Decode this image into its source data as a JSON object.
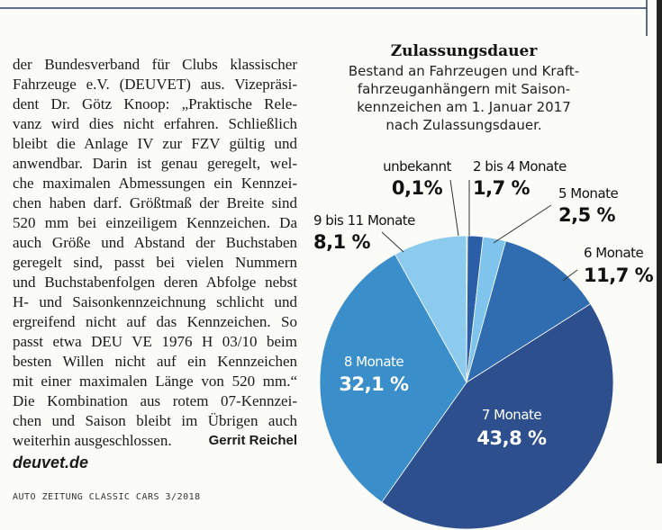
{
  "article": {
    "lines": [
      "der Bundesverband für Clubs klassischer",
      "Fahrzeuge e.V. (DEUVET) aus. Vizepräsi-",
      "dent Dr. Götz Knoop: „Praktische Rele-",
      "vanz wird dies nicht erfahren. Schließlich",
      "bleibt die Anlage IV zur FZV gültig und",
      "anwendbar. Darin ist genau geregelt, wel-",
      "che maximalen Abmessungen ein Kennzei-",
      "chen haben darf. Größtmaß der Breite sind",
      "520 mm bei einzeiligem Kennzeichen. Da",
      "auch Größe und Abstand der Buchstaben",
      "geregelt sind, passt bei vielen Nummern",
      "und Buchstabenfolgen deren Abfolge nebst",
      "H- und Saisonkennzeichnung schlicht und",
      "ergreifend nicht auf das Kennzeichen. So",
      "passt etwa DEU VE 1976 H 03/10 beim",
      "besten Willen nicht auf ein Kennzeichen",
      "mit einer maximalen Länge von 520 mm.“",
      "Die Kombination aus rotem 07-Kennzei-",
      "chen und Saison bleibt im Übrigen auch"
    ],
    "last_line": "weiterhin ausgeschlossen.",
    "author": "Gerrit Reichel",
    "source": "deuvet.de"
  },
  "footer": "AUTO ZEITUNG CLASSIC CARS 3/2018",
  "chart_data": {
    "type": "pie",
    "title": "Zulassungsdauer",
    "subtitle": [
      "Bestand an Fahrzeugen und Kraft-",
      "fahrzeuganhängern mit Saison-",
      "kennzeichen am 1. Januar 2017",
      "nach Zulassungsdauer."
    ],
    "categories": [
      "unbekannt",
      "2 bis 4 Monate",
      "5 Monate",
      "6 Monate",
      "7 Monate",
      "8 Monate",
      "9 bis 11 Monate"
    ],
    "values": [
      0.1,
      1.7,
      2.5,
      11.7,
      43.8,
      32.1,
      8.1
    ],
    "value_labels": [
      "0,1%",
      "1,7 %",
      "2,5 %",
      "11,7 %",
      "43,8 %",
      "32,1 %",
      "8,1 %"
    ],
    "colors": [
      "#1c3c78",
      "#2a5ea7",
      "#7fc4ec",
      "#2f6db0",
      "#2d4f8e",
      "#3a8fcb",
      "#8ccbee"
    ]
  }
}
